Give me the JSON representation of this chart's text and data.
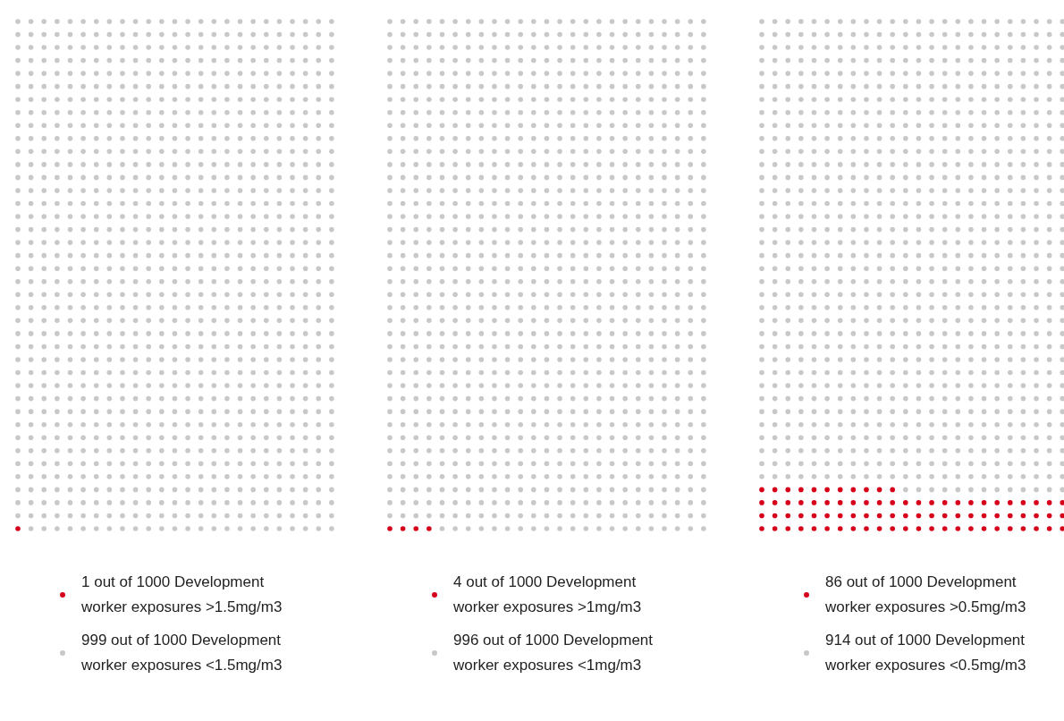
{
  "chart_data": [
    {
      "type": "other",
      "categories": [
        "Development worker exposures >1.5mg/m3",
        "Development worker exposures <1.5mg/m3"
      ],
      "values": [
        1,
        999
      ],
      "value_labels": [
        "1 out of 1000",
        "999 out of 1000"
      ],
      "colors": [
        "#d7001a",
        "#c8c8c8"
      ]
    },
    {
      "type": "other",
      "categories": [
        "Development worker exposures >1mg/m3",
        "Development worker exposures <1mg/m3"
      ],
      "values": [
        4,
        996
      ],
      "value_labels": [
        "4 out of 1000",
        "996 out of 1000"
      ],
      "colors": [
        "#d7001a",
        "#c8c8c8"
      ]
    },
    {
      "type": "other",
      "categories": [
        "Development worker exposures >0.5mg/m3",
        "Development worker exposures <0.5mg/m3"
      ],
      "values": [
        86,
        914
      ],
      "value_labels": [
        "86 out of 1000",
        "914 out of 1000"
      ],
      "colors": [
        "#d7001a",
        "#c8c8c8"
      ]
    }
  ]
}
